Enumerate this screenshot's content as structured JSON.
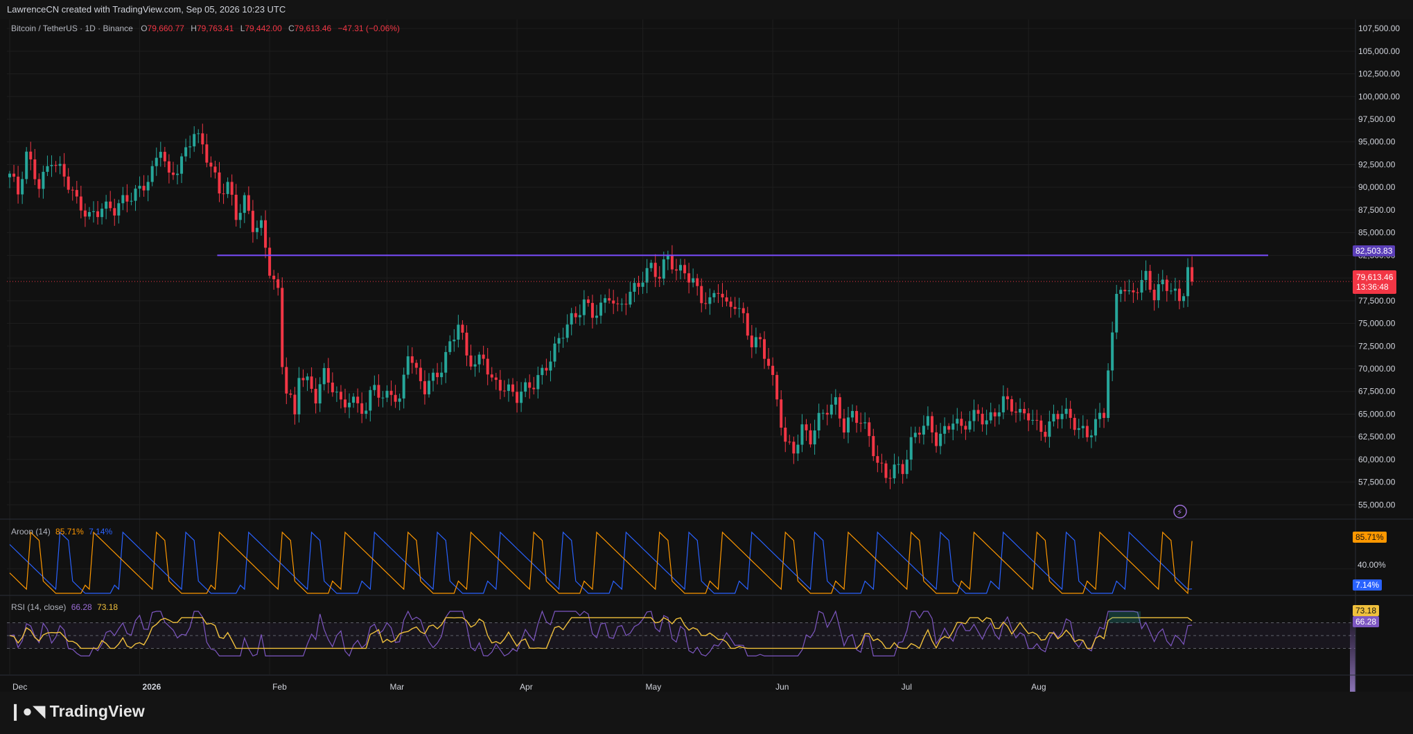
{
  "header": {
    "attribution": "LawrenceCN created with TradingView.com, Sep 05, 2026 10:23 UTC"
  },
  "legend": {
    "symbol": "Bitcoin / TetherUS · 1D · Binance",
    "open_label": "O",
    "open": "79,660.77",
    "high_label": "H",
    "high": "79,763.41",
    "low_label": "L",
    "low": "79,442.00",
    "close_label": "C",
    "close": "79,613.46",
    "change": "−47.31 (−0.06%)"
  },
  "price_tags": {
    "resistance": "82,503.83",
    "last_price": "79,613.46",
    "countdown": "13:36:48"
  },
  "aroon_legend": {
    "label": "Aroon (14)",
    "up": "85.71%",
    "down": "7.14%"
  },
  "aroon_axis": {
    "mid": "40.00%"
  },
  "aroon_tags": {
    "up": "85.71%",
    "down": "7.14%"
  },
  "rsi_legend": {
    "label": "RSI (14, close)",
    "rsi": "66.28",
    "ma": "73.18"
  },
  "rsi_tags": {
    "ma": "73.18",
    "rsi": "66.28"
  },
  "footer": {
    "brand": "TradingView"
  },
  "colors": {
    "up": "#26a69a",
    "down": "#f23645",
    "resistance": "#7b4dff",
    "aroon_up": "#ff9800",
    "aroon_down": "#2962ff",
    "rsi": "#7e57c2",
    "rsi_ma": "#f0c03c",
    "background": "#111111"
  },
  "chart_data": {
    "type": "candlestick",
    "title": "Bitcoin / TetherUS · 1D · Binance",
    "y_ticks": [
      "107,500.00",
      "105,000.00",
      "102,500.00",
      "100,000.00",
      "97,500.00",
      "95,000.00",
      "92,500.00",
      "90,000.00",
      "87,500.00",
      "85,000.00",
      "82,500.00",
      "80,000.00",
      "77,500.00",
      "75,000.00",
      "72,500.00",
      "70,000.00",
      "67,500.00",
      "65,000.00",
      "62,500.00",
      "60,000.00",
      "57,500.00",
      "55,000.00"
    ],
    "ylim": [
      53500,
      108500
    ],
    "x_ticks": [
      {
        "label": "Dec",
        "day": 0
      },
      {
        "label": "2026",
        "day": 31
      },
      {
        "label": "Feb",
        "day": 62
      },
      {
        "label": "Mar",
        "day": 90
      },
      {
        "label": "Apr",
        "day": 121
      },
      {
        "label": "May",
        "day": 151
      },
      {
        "label": "Jun",
        "day": 182
      },
      {
        "label": "Jul",
        "day": 212
      },
      {
        "label": "Aug",
        "day": 243
      }
    ],
    "resistance_level": 82503.83,
    "last_price": 79613.46,
    "close_anchors": [
      [
        0,
        91500
      ],
      [
        2,
        89000
      ],
      [
        4,
        93200
      ],
      [
        7,
        90500
      ],
      [
        10,
        93500
      ],
      [
        13,
        91000
      ],
      [
        16,
        88000
      ],
      [
        19,
        87000
      ],
      [
        22,
        88200
      ],
      [
        25,
        87300
      ],
      [
        28,
        88400
      ],
      [
        31,
        90000
      ],
      [
        34,
        92000
      ],
      [
        36,
        94500
      ],
      [
        38,
        90500
      ],
      [
        40,
        91800
      ],
      [
        42,
        94000
      ],
      [
        44,
        96700
      ],
      [
        46,
        94800
      ],
      [
        48,
        92200
      ],
      [
        50,
        89000
      ],
      [
        52,
        90000
      ],
      [
        54,
        87000
      ],
      [
        56,
        89000
      ],
      [
        58,
        86000
      ],
      [
        60,
        85500
      ],
      [
        62,
        80500
      ],
      [
        64,
        78000
      ],
      [
        65,
        70500
      ],
      [
        66,
        68000
      ],
      [
        67,
        67000
      ],
      [
        68,
        65000
      ],
      [
        69,
        70000
      ],
      [
        71,
        68500
      ],
      [
        73,
        66500
      ],
      [
        75,
        69000
      ],
      [
        77,
        68000
      ],
      [
        79,
        66500
      ],
      [
        81,
        67000
      ],
      [
        83,
        66000
      ],
      [
        85,
        65000
      ],
      [
        87,
        68000
      ],
      [
        89,
        66500
      ],
      [
        91,
        68000
      ],
      [
        93,
        66500
      ],
      [
        95,
        72000
      ],
      [
        97,
        69000
      ],
      [
        99,
        67500
      ],
      [
        101,
        69000
      ],
      [
        103,
        70500
      ],
      [
        105,
        73000
      ],
      [
        107,
        75000
      ],
      [
        109,
        71000
      ],
      [
        111,
        70000
      ],
      [
        113,
        71500
      ],
      [
        115,
        69000
      ],
      [
        117,
        68500
      ],
      [
        119,
        67500
      ],
      [
        121,
        66500
      ],
      [
        123,
        67500
      ],
      [
        125,
        68500
      ],
      [
        127,
        70000
      ],
      [
        129,
        71500
      ],
      [
        131,
        73000
      ],
      [
        133,
        74500
      ],
      [
        135,
        75500
      ],
      [
        137,
        77500
      ],
      [
        139,
        76500
      ],
      [
        141,
        77000
      ],
      [
        143,
        78000
      ],
      [
        145,
        76000
      ],
      [
        147,
        77500
      ],
      [
        149,
        79000
      ],
      [
        151,
        80500
      ],
      [
        153,
        81500
      ],
      [
        155,
        80000
      ],
      [
        157,
        82000
      ],
      [
        159,
        80500
      ],
      [
        161,
        81000
      ],
      [
        163,
        80000
      ],
      [
        165,
        78000
      ],
      [
        167,
        77000
      ],
      [
        169,
        78500
      ],
      [
        171,
        76500
      ],
      [
        173,
        77500
      ],
      [
        175,
        76000
      ],
      [
        177,
        73000
      ],
      [
        179,
        72700
      ],
      [
        181,
        70000
      ],
      [
        183,
        66500
      ],
      [
        185,
        62000
      ],
      [
        187,
        61500
      ],
      [
        189,
        63500
      ],
      [
        191,
        62000
      ],
      [
        193,
        64000
      ],
      [
        195,
        65500
      ],
      [
        197,
        66500
      ],
      [
        199,
        64000
      ],
      [
        201,
        65000
      ],
      [
        203,
        64000
      ],
      [
        205,
        62000
      ],
      [
        207,
        59500
      ],
      [
        209,
        58500
      ],
      [
        211,
        59500
      ],
      [
        213,
        59000
      ],
      [
        215,
        61500
      ],
      [
        217,
        63000
      ],
      [
        219,
        64000
      ],
      [
        221,
        62500
      ],
      [
        223,
        63500
      ],
      [
        225,
        64500
      ],
      [
        227,
        63000
      ],
      [
        229,
        64000
      ],
      [
        231,
        65000
      ],
      [
        233,
        64500
      ],
      [
        235,
        65500
      ],
      [
        237,
        66500
      ],
      [
        239,
        65500
      ],
      [
        241,
        64500
      ],
      [
        243,
        65000
      ],
      [
        245,
        64000
      ],
      [
        247,
        63500
      ],
      [
        249,
        64500
      ],
      [
        251,
        65000
      ],
      [
        253,
        64000
      ],
      [
        255,
        63500
      ],
      [
        257,
        63000
      ],
      [
        259,
        64500
      ],
      [
        261,
        65000
      ],
      [
        262,
        70000
      ],
      [
        263,
        73000
      ],
      [
        264,
        77500
      ],
      [
        265,
        79000
      ],
      [
        267,
        78000
      ],
      [
        269,
        79500
      ],
      [
        271,
        80500
      ],
      [
        273,
        78000
      ],
      [
        275,
        79000
      ],
      [
        277,
        78500
      ],
      [
        279,
        77500
      ],
      [
        280,
        79000
      ],
      [
        281,
        81500
      ],
      [
        282,
        79613
      ]
    ],
    "aroon": {
      "up_last": 85.71,
      "down_last": 7.14,
      "axis_ticks": [
        "40.00%"
      ]
    },
    "rsi": {
      "rsi_last": 66.28,
      "ma_last": 73.18,
      "bands": [
        70,
        50,
        30
      ]
    }
  }
}
